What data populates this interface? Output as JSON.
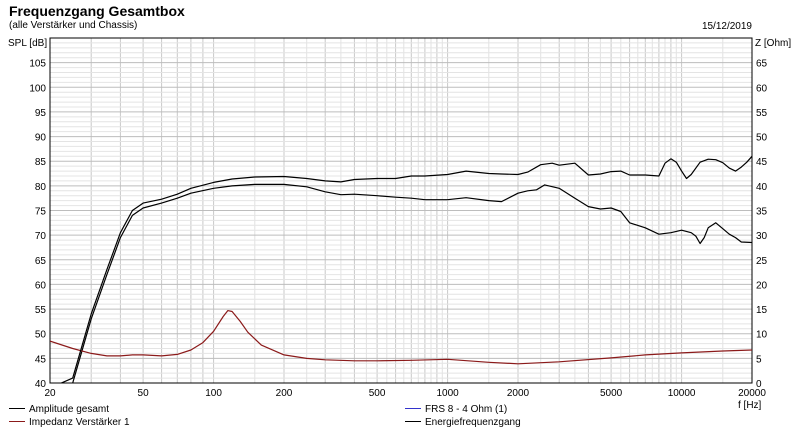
{
  "chart_data": {
    "type": "line",
    "title": "Frequenzgang Gesamtbox",
    "subtitle": "(alle Verstärker und Chassis)",
    "date": "15/12/2019",
    "ylabel_left": "SPL [dB]",
    "ylabel_right": "Z [Ohm]",
    "xlabel": "f [Hz]",
    "x_scale": "log",
    "xlim": [
      20,
      20000
    ],
    "ylim_left": [
      40,
      110
    ],
    "ylim_right": [
      0,
      70
    ],
    "grid": true,
    "x_tick_labels": [
      "20",
      "50",
      "100",
      "200",
      "500",
      "1000",
      "2000",
      "5000",
      "10000",
      "20000"
    ],
    "y_left_tick_labels": [
      "40",
      "45",
      "50",
      "55",
      "60",
      "65",
      "70",
      "75",
      "80",
      "85",
      "90",
      "95",
      "100",
      "105"
    ],
    "y_right_tick_labels": [
      "0",
      "5",
      "10",
      "15",
      "20",
      "25",
      "30",
      "35",
      "40",
      "45",
      "50",
      "55",
      "60",
      "65"
    ],
    "colors": {
      "grid": "#c8c8c8",
      "axes": "#000000",
      "amplitude": "#000000",
      "impedance": "#8b1a1a",
      "energy": "#000000",
      "frs": "#3333cc"
    },
    "series": [
      {
        "name": "Amplitude gesamt",
        "axis": "left",
        "color": "#000000",
        "x": [
          20,
          25,
          30,
          35,
          40,
          45,
          50,
          60,
          70,
          80,
          100,
          120,
          150,
          200,
          250,
          300,
          350,
          400,
          500,
          600,
          700,
          800,
          1000,
          1200,
          1500,
          1700,
          2000,
          2200,
          2400,
          2600,
          3000,
          3500,
          4000,
          4500,
          5000,
          5500,
          6000,
          7000,
          8000,
          9000,
          10000,
          11000,
          11500,
          12000,
          12500,
          13000,
          14000,
          15000,
          16000,
          17000,
          18000,
          20000
        ],
        "y": [
          39,
          40,
          53,
          62,
          69.5,
          74,
          75.5,
          76.5,
          77.5,
          78.5,
          79.5,
          80,
          80.3,
          80.3,
          79.8,
          78.8,
          78.2,
          78.3,
          78,
          77.7,
          77.5,
          77.2,
          77.2,
          77.6,
          77,
          76.8,
          78.5,
          79,
          79.2,
          80.2,
          79.5,
          77.5,
          75.8,
          75.3,
          75.5,
          74.8,
          72.5,
          71.5,
          70.2,
          70.5,
          71,
          70.5,
          69.8,
          68.3,
          69.5,
          71.5,
          72.5,
          71.3,
          70.2,
          69.5,
          68.6,
          68.5
        ]
      },
      {
        "name": "Impedanz Verstärker 1",
        "axis": "right",
        "color": "#8b1a1a",
        "x": [
          20,
          25,
          30,
          35,
          40,
          45,
          50,
          60,
          70,
          80,
          90,
          100,
          110,
          115,
          120,
          130,
          140,
          160,
          200,
          250,
          300,
          400,
          500,
          700,
          1000,
          1500,
          2000,
          3000,
          5000,
          7000,
          10000,
          15000,
          20000
        ],
        "y": [
          8.5,
          7,
          6,
          5.5,
          5.5,
          5.7,
          5.7,
          5.5,
          5.8,
          6.7,
          8.2,
          10.5,
          13.5,
          14.7,
          14.5,
          12.5,
          10.3,
          7.7,
          5.7,
          5,
          4.7,
          4.5,
          4.5,
          4.6,
          4.8,
          4.2,
          3.9,
          4.3,
          5.1,
          5.7,
          6.1,
          6.5,
          6.7
        ]
      },
      {
        "name": "FRS 8 - 4 Ohm (1)",
        "axis": "left",
        "color": "#3333cc",
        "x": [],
        "y": []
      },
      {
        "name": "Energiefrequenzgang",
        "axis": "left",
        "color": "#000000",
        "x": [
          20,
          25,
          30,
          35,
          40,
          45,
          50,
          60,
          70,
          80,
          100,
          120,
          150,
          200,
          250,
          300,
          350,
          400,
          500,
          600,
          700,
          800,
          1000,
          1200,
          1500,
          1700,
          2000,
          2200,
          2500,
          2800,
          3000,
          3500,
          4000,
          4500,
          5000,
          5500,
          6000,
          7000,
          8000,
          8500,
          9000,
          9500,
          10000,
          10500,
          11000,
          12000,
          13000,
          14000,
          15000,
          16000,
          17000,
          18000,
          19000,
          20000
        ],
        "y": [
          39,
          41,
          54,
          63,
          70.5,
          75,
          76.5,
          77.3,
          78.3,
          79.5,
          80.7,
          81.4,
          81.8,
          81.9,
          81.5,
          81,
          80.8,
          81.3,
          81.5,
          81.5,
          82,
          82,
          82.3,
          83,
          82.5,
          82.4,
          82.3,
          82.8,
          84.3,
          84.6,
          84.2,
          84.6,
          82.2,
          82.4,
          82.9,
          83,
          82.2,
          82.2,
          82,
          84.6,
          85.5,
          84.8,
          83,
          81.5,
          82.3,
          84.8,
          85.4,
          85.3,
          84.7,
          83.6,
          83,
          83.8,
          84.8,
          86
        ]
      }
    ],
    "legend": {
      "items": [
        {
          "label": "Amplitude gesamt",
          "color": "#000000"
        },
        {
          "label": "Impedanz Verstärker 1",
          "color": "#8b1a1a"
        },
        {
          "label": "FRS 8 - 4 Ohm (1)",
          "color": "#3333cc"
        },
        {
          "label": "Energiefrequenzgang",
          "color": "#000000"
        }
      ]
    }
  }
}
